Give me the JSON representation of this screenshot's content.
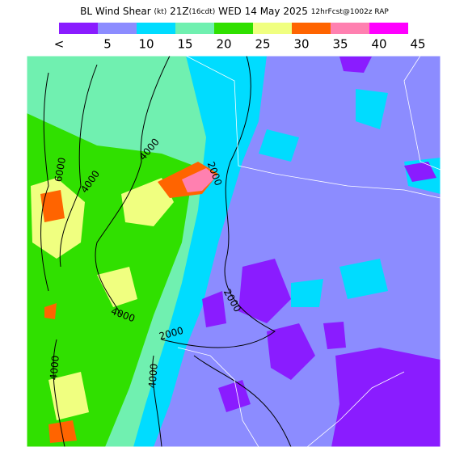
{
  "header": {
    "title_parts": [
      {
        "text": "BL Wind Shear ",
        "size": "large"
      },
      {
        "text": "(kt)",
        "size": "small"
      },
      {
        "text": " 21Z",
        "size": "large"
      },
      {
        "text": "(16cdt)",
        "size": "small"
      },
      {
        "text": " WED 14 May 2025 ",
        "size": "large"
      },
      {
        "text": "12hrFcst@1002z RAP",
        "size": "small"
      }
    ]
  },
  "colorbar": {
    "colors": [
      "#8a1cff",
      "#8c8cff",
      "#00dcff",
      "#70f0b0",
      "#30e000",
      "#f0ff80",
      "#ff6400",
      "#ff80b0",
      "#ff00ff"
    ],
    "labels": [
      "<",
      "5",
      "10",
      "15",
      "20",
      "25",
      "30",
      "35",
      "40",
      "45"
    ]
  },
  "map": {
    "contour_labels": [
      "6000",
      "4000",
      "4000",
      "2000",
      "2000",
      "4000",
      "2000",
      "4000",
      "4000"
    ]
  }
}
